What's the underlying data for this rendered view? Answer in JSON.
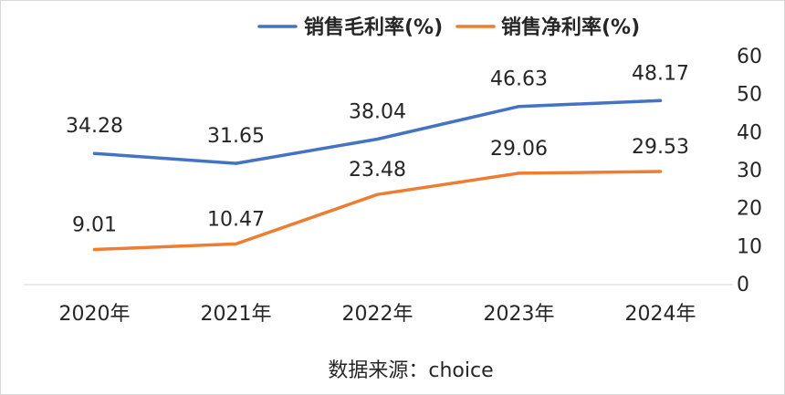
{
  "chart_data": {
    "type": "line",
    "title": "",
    "categories": [
      "2020年",
      "2021年",
      "2022年",
      "2023年",
      "2024年"
    ],
    "series": [
      {
        "name": "销售毛利率(%)",
        "values": [
          34.28,
          31.65,
          38.04,
          46.63,
          48.17
        ],
        "color": "#4472C4"
      },
      {
        "name": "销售净利率(%)",
        "values": [
          9.01,
          10.47,
          23.48,
          29.06,
          29.53
        ],
        "color": "#ED7D31"
      }
    ],
    "y_axis": {
      "side": "right",
      "min": 0,
      "max": 60,
      "ticks": [
        0,
        10,
        20,
        30,
        40,
        50,
        60
      ]
    },
    "legend_position": "top-right",
    "grid": false,
    "source": "数据来源：choice"
  }
}
